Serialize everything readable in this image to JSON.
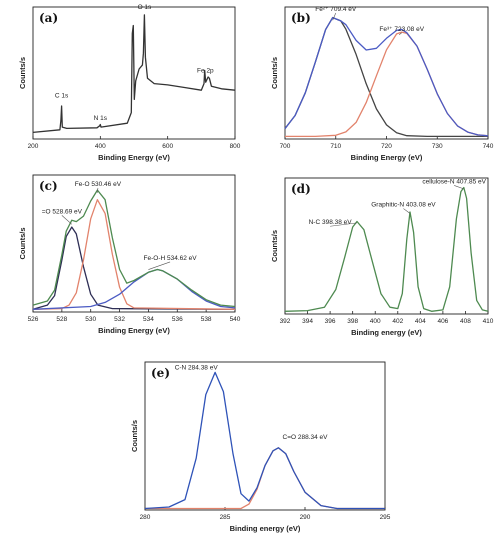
{
  "chart_data": [
    {
      "panel": "(a)",
      "type": "line",
      "xlabel": "Binding Energy (eV)",
      "ylabel": "Counts/s",
      "xlim": [
        200,
        800
      ],
      "ylim": [
        0,
        1
      ],
      "xticks": [
        200,
        400,
        600,
        800
      ],
      "annotations": [
        {
          "text": "C 1s",
          "x": 285,
          "y": 0.3
        },
        {
          "text": "N 1s",
          "x": 400,
          "y": 0.13
        },
        {
          "text": "O 1s",
          "x": 531,
          "y": 0.97
        },
        {
          "text": "Fe 2p",
          "x": 712,
          "y": 0.49
        }
      ],
      "series": [
        {
          "color": "#333333",
          "points": [
            [
              200,
              0.05
            ],
            [
              280,
              0.07
            ],
            [
              283,
              0.14
            ],
            [
              285,
              0.25
            ],
            [
              287,
              0.09
            ],
            [
              300,
              0.08
            ],
            [
              390,
              0.085
            ],
            [
              398,
              0.1
            ],
            [
              400,
              0.11
            ],
            [
              402,
              0.09
            ],
            [
              480,
              0.12
            ],
            [
              492,
              0.2
            ],
            [
              495,
              0.8
            ],
            [
              498,
              0.86
            ],
            [
              501,
              0.3
            ],
            [
              505,
              0.44
            ],
            [
              515,
              0.53
            ],
            [
              525,
              0.56
            ],
            [
              528,
              0.65
            ],
            [
              531,
              0.94
            ],
            [
              534,
              0.62
            ],
            [
              540,
              0.46
            ],
            [
              560,
              0.42
            ],
            [
              600,
              0.41
            ],
            [
              650,
              0.39
            ],
            [
              700,
              0.37
            ],
            [
              708,
              0.42
            ],
            [
              710,
              0.52
            ],
            [
              713,
              0.43
            ],
            [
              720,
              0.47
            ],
            [
              724,
              0.46
            ],
            [
              730,
              0.4
            ],
            [
              760,
              0.38
            ],
            [
              800,
              0.37
            ]
          ]
        }
      ]
    },
    {
      "panel": "(b)",
      "type": "line",
      "xlabel": "Binding Energy (eV)",
      "ylabel": "Counts/s",
      "xlim": [
        700,
        740
      ],
      "ylim": [
        0,
        1
      ],
      "xticks": [
        700,
        710,
        720,
        730,
        740
      ],
      "annotations": [
        {
          "text": "Fe²⁺ 709.4 eV",
          "x": 710,
          "y": 0.97
        },
        {
          "text": "Fe³⁺ 723.08 eV",
          "x": 723,
          "y": 0.82
        }
      ],
      "series": [
        {
          "color": "#444444",
          "points": [
            [
              700,
              0.079
            ],
            [
              702,
              0.178
            ],
            [
              704,
              0.35
            ],
            [
              706,
              0.584
            ],
            [
              708,
              0.829
            ],
            [
              709.4,
              0.92
            ],
            [
              711,
              0.895
            ],
            [
              712,
              0.832
            ],
            [
              714,
              0.641
            ],
            [
              716,
              0.418
            ],
            [
              718,
              0.228
            ],
            [
              720,
              0.107
            ],
            [
              722,
              0.047
            ],
            [
              724,
              0.025
            ],
            [
              728,
              0.02
            ],
            [
              734,
              0.02
            ],
            [
              740,
              0.02
            ]
          ]
        },
        {
          "color": "#e2836c",
          "points": [
            [
              700,
              0.02
            ],
            [
              706,
              0.02
            ],
            [
              710,
              0.028
            ],
            [
              712,
              0.054
            ],
            [
              714,
              0.126
            ],
            [
              716,
              0.276
            ],
            [
              718,
              0.479
            ],
            [
              720,
              0.676
            ],
            [
              722,
              0.796
            ],
            [
              723,
              0.81
            ],
            [
              724,
              0.8
            ],
            [
              726,
              0.704
            ],
            [
              728,
              0.53
            ],
            [
              730,
              0.342
            ],
            [
              732,
              0.193
            ],
            [
              734,
              0.099
            ],
            [
              736,
              0.052
            ],
            [
              738,
              0.031
            ],
            [
              740,
              0.024
            ]
          ]
        },
        {
          "color": "#4b5bc4",
          "points": [
            [
              700,
              0.079
            ],
            [
              702,
              0.178
            ],
            [
              704,
              0.35
            ],
            [
              706,
              0.584
            ],
            [
              708,
              0.829
            ],
            [
              709.4,
              0.92
            ],
            [
              711,
              0.895
            ],
            [
              712,
              0.866
            ],
            [
              714,
              0.747
            ],
            [
              716,
              0.674
            ],
            [
              718,
              0.687
            ],
            [
              720,
              0.763
            ],
            [
              722,
              0.823
            ],
            [
              723,
              0.83
            ],
            [
              724,
              0.805
            ],
            [
              726,
              0.704
            ],
            [
              728,
              0.53
            ],
            [
              730,
              0.342
            ],
            [
              732,
              0.193
            ],
            [
              734,
              0.099
            ],
            [
              736,
              0.052
            ],
            [
              738,
              0.031
            ],
            [
              740,
              0.024
            ]
          ]
        }
      ]
    },
    {
      "panel": "(c)",
      "type": "line",
      "xlabel": "Binding Energy (eV)",
      "ylabel": "Counts/s",
      "xlim": [
        526,
        540
      ],
      "ylim": [
        0,
        1
      ],
      "xticks": [
        526,
        528,
        530,
        532,
        534,
        536,
        538,
        540
      ],
      "annotations": [
        {
          "text": "=O 528.69 eV",
          "x": 528.0,
          "y": 0.72
        },
        {
          "text": "Fe-O 530.46 eV",
          "x": 530.5,
          "y": 0.92
        },
        {
          "text": "Fe-O-H 534.62 eV",
          "x": 535.5,
          "y": 0.38
        }
      ],
      "series": [
        {
          "color": "#2e2e55",
          "points": [
            [
              526,
              0.02
            ],
            [
              527,
              0.05
            ],
            [
              527.5,
              0.12
            ],
            [
              528,
              0.38
            ],
            [
              528.3,
              0.55
            ],
            [
              528.69,
              0.62
            ],
            [
              529,
              0.57
            ],
            [
              529.5,
              0.33
            ],
            [
              530,
              0.13
            ],
            [
              530.5,
              0.05
            ],
            [
              531.5,
              0.025
            ],
            [
              540,
              0.02
            ]
          ]
        },
        {
          "color": "#e2836c",
          "points": [
            [
              526,
              0.02
            ],
            [
              528,
              0.025
            ],
            [
              528.5,
              0.05
            ],
            [
              529,
              0.14
            ],
            [
              529.5,
              0.38
            ],
            [
              530,
              0.68
            ],
            [
              530.46,
              0.82
            ],
            [
              531,
              0.72
            ],
            [
              531.5,
              0.42
            ],
            [
              532,
              0.18
            ],
            [
              532.5,
              0.06
            ],
            [
              533,
              0.03
            ],
            [
              540,
              0.02
            ]
          ]
        },
        {
          "color": "#4b5bc4",
          "points": [
            [
              526,
              0.02
            ],
            [
              530,
              0.04
            ],
            [
              531,
              0.07
            ],
            [
              532,
              0.13
            ],
            [
              533,
              0.22
            ],
            [
              534,
              0.29
            ],
            [
              534.62,
              0.31
            ],
            [
              535,
              0.3
            ],
            [
              536,
              0.24
            ],
            [
              537,
              0.15
            ],
            [
              538,
              0.08
            ],
            [
              539,
              0.04
            ],
            [
              540,
              0.03
            ]
          ]
        },
        {
          "color": "#4e8a50",
          "points": [
            [
              526,
              0.05
            ],
            [
              527,
              0.08
            ],
            [
              527.5,
              0.16
            ],
            [
              528,
              0.42
            ],
            [
              528.3,
              0.59
            ],
            [
              528.69,
              0.67
            ],
            [
              529,
              0.66
            ],
            [
              529.5,
              0.7
            ],
            [
              530,
              0.81
            ],
            [
              530.46,
              0.89
            ],
            [
              531,
              0.82
            ],
            [
              531.5,
              0.54
            ],
            [
              532,
              0.31
            ],
            [
              532.5,
              0.21
            ],
            [
              533,
              0.23
            ],
            [
              534,
              0.29
            ],
            [
              534.62,
              0.31
            ],
            [
              535,
              0.3
            ],
            [
              536,
              0.24
            ],
            [
              537,
              0.16
            ],
            [
              538,
              0.09
            ],
            [
              539,
              0.05
            ],
            [
              540,
              0.04
            ]
          ]
        }
      ]
    },
    {
      "panel": "(d)",
      "type": "line",
      "xlabel": "Binding energy (eV)",
      "ylabel": "Counts/s",
      "xlim": [
        392,
        410
      ],
      "ylim": [
        0,
        1
      ],
      "xticks": [
        392,
        394,
        396,
        398,
        400,
        402,
        404,
        406,
        408,
        410
      ],
      "annotations": [
        {
          "text": "N-C 398.38 eV",
          "x": 396.0,
          "y": 0.66
        },
        {
          "text": "Graphitic-N 403.08 eV",
          "x": 402.5,
          "y": 0.79
        },
        {
          "text": "cellulose-N 407.85 eV",
          "x": 407.0,
          "y": 0.96
        }
      ],
      "series": [
        {
          "color": "#4e8a50",
          "points": [
            [
              392,
              0.02
            ],
            [
              394,
              0.025
            ],
            [
              395.5,
              0.05
            ],
            [
              396.5,
              0.18
            ],
            [
              397.3,
              0.42
            ],
            [
              398,
              0.64
            ],
            [
              398.38,
              0.68
            ],
            [
              399,
              0.62
            ],
            [
              399.7,
              0.4
            ],
            [
              400.5,
              0.15
            ],
            [
              401.3,
              0.05
            ],
            [
              402,
              0.04
            ],
            [
              402.4,
              0.15
            ],
            [
              402.8,
              0.55
            ],
            [
              403.08,
              0.75
            ],
            [
              403.4,
              0.6
            ],
            [
              403.8,
              0.2
            ],
            [
              404.3,
              0.04
            ],
            [
              405,
              0.02
            ],
            [
              406,
              0.03
            ],
            [
              406.6,
              0.2
            ],
            [
              407.2,
              0.7
            ],
            [
              407.6,
              0.9
            ],
            [
              407.85,
              0.93
            ],
            [
              408.1,
              0.85
            ],
            [
              408.5,
              0.45
            ],
            [
              409,
              0.1
            ],
            [
              409.5,
              0.03
            ],
            [
              410,
              0.02
            ]
          ]
        }
      ]
    },
    {
      "panel": "(e)",
      "type": "line",
      "xlabel": "Binding energy (eV)",
      "ylabel": "Counts/s",
      "xlim": [
        280,
        295
      ],
      "ylim": [
        0,
        1
      ],
      "xticks": [
        280,
        285,
        290,
        295
      ],
      "annotations": [
        {
          "text": "C-N 284.38 eV",
          "x": 283.2,
          "y": 0.95
        },
        {
          "text": "C=O 288.34 eV",
          "x": 290.0,
          "y": 0.48
        }
      ],
      "series": [
        {
          "color": "#e2836c",
          "points": [
            [
              280,
              0.01
            ],
            [
              286,
              0.01
            ],
            [
              286.5,
              0.04
            ],
            [
              287,
              0.14
            ],
            [
              287.5,
              0.3
            ],
            [
              288,
              0.4
            ],
            [
              288.34,
              0.42
            ],
            [
              288.8,
              0.38
            ],
            [
              289.3,
              0.26
            ],
            [
              290,
              0.12
            ],
            [
              291,
              0.03
            ],
            [
              292,
              0.01
            ],
            [
              295,
              0.01
            ]
          ]
        },
        {
          "color": "#2f53b8",
          "points": [
            [
              280,
              0.01
            ],
            [
              281.5,
              0.02
            ],
            [
              282.5,
              0.07
            ],
            [
              283.2,
              0.35
            ],
            [
              283.8,
              0.78
            ],
            [
              284.38,
              0.93
            ],
            [
              284.9,
              0.8
            ],
            [
              285.5,
              0.38
            ],
            [
              286,
              0.11
            ],
            [
              286.5,
              0.06
            ],
            [
              287,
              0.15
            ],
            [
              287.5,
              0.3
            ],
            [
              288,
              0.4
            ],
            [
              288.34,
              0.42
            ],
            [
              288.8,
              0.38
            ],
            [
              289.3,
              0.26
            ],
            [
              290,
              0.12
            ],
            [
              291,
              0.03
            ],
            [
              292,
              0.01
            ],
            [
              295,
              0.01
            ]
          ]
        }
      ]
    }
  ]
}
